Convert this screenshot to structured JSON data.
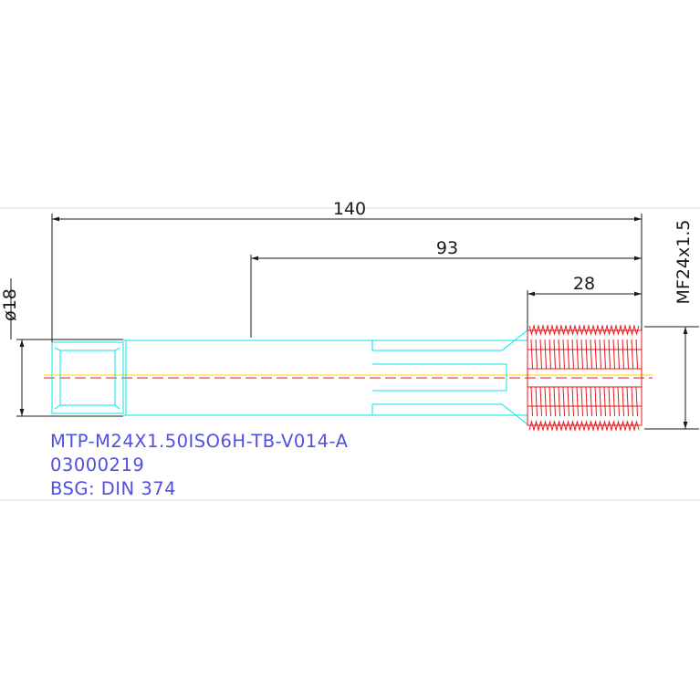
{
  "dimensions": {
    "overall_length": "140",
    "shank_to_end": "93",
    "thread_length": "28",
    "shank_diameter": "ø18",
    "thread_size": "MF24x1.5"
  },
  "labels": {
    "part_code": "MTP-M24X1.50ISO6H-TB-V014-A",
    "part_number": "03000219",
    "standard": "BSG: DIN  374"
  },
  "colors": {
    "dimension": "#1a1a1a",
    "body_outline": "#00e5ee",
    "thread": "#e8151b",
    "centerline": "#ffd700",
    "text": "#5050e0",
    "frame": "#d8d8d8"
  }
}
